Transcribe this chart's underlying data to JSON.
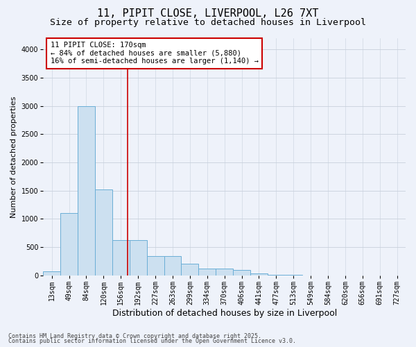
{
  "title": "11, PIPIT CLOSE, LIVERPOOL, L26 7XT",
  "subtitle": "Size of property relative to detached houses in Liverpool",
  "xlabel": "Distribution of detached houses by size in Liverpool",
  "ylabel": "Number of detached properties",
  "property_label": "11 PIPIT CLOSE: 170sqm",
  "annotation_line1": "← 84% of detached houses are smaller (5,880)",
  "annotation_line2": "16% of semi-detached houses are larger (1,140) →",
  "footnote1": "Contains HM Land Registry data © Crown copyright and database right 2025.",
  "footnote2": "Contains public sector information licensed under the Open Government Licence v3.0.",
  "bar_color": "#cce0f0",
  "bar_edge_color": "#6aaed6",
  "vline_color": "#cc0000",
  "background_color": "#eef2fa",
  "annotation_box_facecolor": "#ffffff",
  "annotation_box_edgecolor": "#cc0000",
  "categories": [
    "13sqm",
    "49sqm",
    "84sqm",
    "120sqm",
    "156sqm",
    "192sqm",
    "227sqm",
    "263sqm",
    "299sqm",
    "334sqm",
    "370sqm",
    "406sqm",
    "441sqm",
    "477sqm",
    "513sqm",
    "549sqm",
    "584sqm",
    "620sqm",
    "656sqm",
    "691sqm",
    "727sqm"
  ],
  "values": [
    75,
    1100,
    3000,
    1520,
    620,
    620,
    340,
    340,
    200,
    120,
    120,
    100,
    30,
    10,
    5,
    0,
    0,
    0,
    0,
    0,
    0
  ],
  "ylim": [
    0,
    4200
  ],
  "yticks": [
    0,
    500,
    1000,
    1500,
    2000,
    2500,
    3000,
    3500,
    4000
  ],
  "vline_position": 4.39,
  "title_fontsize": 11,
  "subtitle_fontsize": 9.5,
  "ylabel_fontsize": 8,
  "xlabel_fontsize": 9,
  "tick_fontsize": 7,
  "annot_fontsize": 7.5,
  "footnote_fontsize": 6
}
